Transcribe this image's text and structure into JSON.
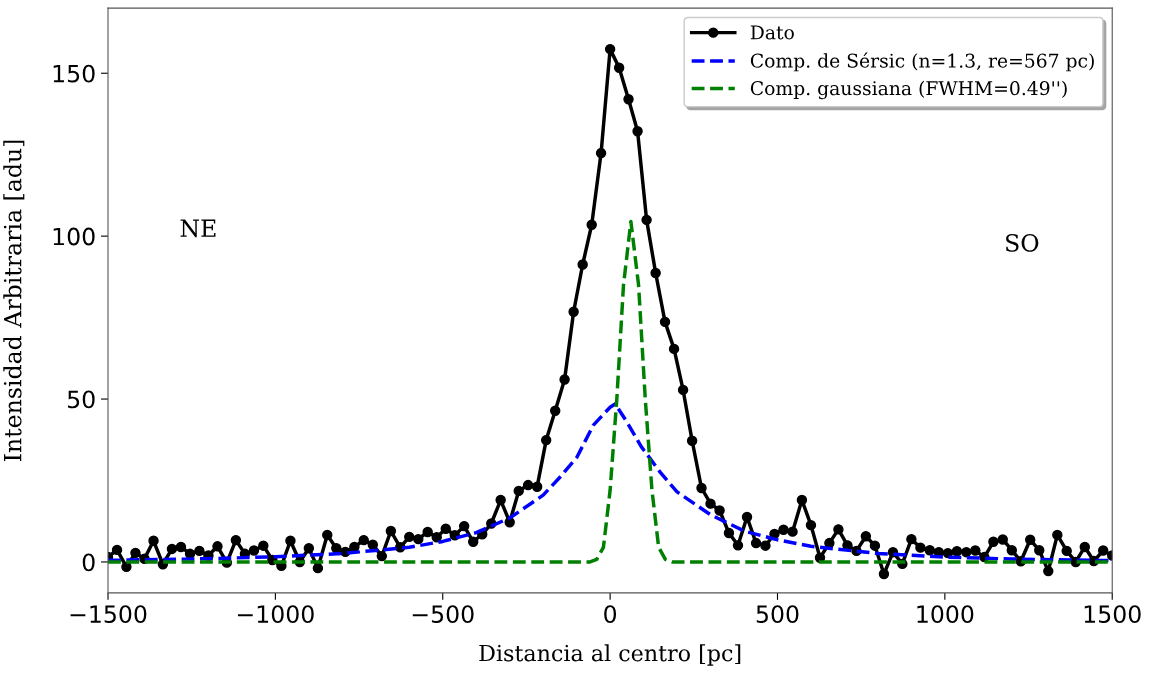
{
  "chart_data": {
    "type": "line",
    "xlabel": "Distancia al centro [pc]",
    "ylabel": "Intensidad Arbitraria [adu]",
    "annotations": [
      "NE",
      "SO"
    ],
    "xlim": [
      -1500,
      1500
    ],
    "ylim": [
      -9.5,
      170
    ],
    "xticks": [
      -1500,
      -1000,
      -500,
      0,
      500,
      1000,
      1500
    ],
    "yticks": [
      0,
      50,
      100,
      150
    ],
    "grid": false,
    "legend": "top right",
    "series": [
      {
        "name": "Dato",
        "color": "#000000",
        "marker": "circle",
        "line_style": "solid",
        "x": [
          -1500,
          -1473,
          -1445,
          -1418,
          -1391,
          -1364,
          -1336,
          -1309,
          -1282,
          -1255,
          -1227,
          -1200,
          -1173,
          -1145,
          -1118,
          -1091,
          -1064,
          -1036,
          -1009,
          -982,
          -955,
          -927,
          -900,
          -873,
          -845,
          -818,
          -791,
          -764,
          -736,
          -709,
          -682,
          -655,
          -627,
          -600,
          -573,
          -545,
          -518,
          -491,
          -464,
          -436,
          -409,
          -382,
          -355,
          -327,
          -300,
          -273,
          -245,
          -218,
          -191,
          -164,
          -136,
          -109,
          -82,
          -55,
          -27,
          0,
          27,
          55,
          82,
          109,
          136,
          164,
          191,
          218,
          245,
          273,
          300,
          327,
          355,
          382,
          409,
          436,
          464,
          491,
          518,
          545,
          573,
          600,
          627,
          655,
          682,
          709,
          736,
          764,
          791,
          818,
          845,
          873,
          900,
          927,
          955,
          982,
          1009,
          1036,
          1064,
          1091,
          1118,
          1145,
          1173,
          1200,
          1227,
          1255,
          1282,
          1309,
          1336,
          1364,
          1391,
          1418,
          1445,
          1473,
          1500
        ],
        "values": [
          1.5,
          3.7,
          -1.5,
          2.8,
          1,
          6.5,
          -0.7,
          4,
          4.6,
          2.5,
          3.4,
          2,
          4.8,
          -0.2,
          6.7,
          2.5,
          3.5,
          5,
          0.6,
          -1.2,
          6.5,
          0,
          4.2,
          -1.9,
          8.3,
          4.2,
          3.1,
          4.6,
          6.7,
          5.3,
          1.8,
          9.5,
          4.5,
          7.7,
          7,
          9.2,
          7.6,
          10.2,
          8.2,
          11,
          6.2,
          8.5,
          11.8,
          19,
          12.2,
          21.8,
          23.6,
          23.1,
          37.4,
          46.4,
          56,
          76.8,
          91.3,
          103.5,
          125.5,
          157.4,
          151.7,
          142,
          132.2,
          105,
          88.7,
          73.7,
          65.4,
          52.8,
          37.2,
          22.7,
          17.9,
          15.8,
          8.9,
          5.1,
          13.8,
          5.8,
          5,
          8.6,
          9.9,
          9.3,
          19,
          11.3,
          1.3,
          5.8,
          10,
          5.1,
          3.4,
          7.9,
          5,
          -3.7,
          3,
          -0.6,
          7,
          4.4,
          3.6,
          3,
          2.7,
          3.3,
          3,
          3.5,
          1.5,
          6.2,
          6.9,
          3.6,
          0.2,
          6.8,
          3.6,
          -2.8,
          8.3,
          3.4,
          0,
          4.6,
          0.3,
          3.5,
          2
        ]
      },
      {
        "name": "Comp. de Sérsic (n=1.3, re=567 pc)",
        "color": "#0000ff",
        "marker": "none",
        "line_style": "dashed",
        "x": [
          -1500,
          -1200,
          -1000,
          -800,
          -600,
          -500,
          -400,
          -300,
          -200,
          -150,
          -100,
          -75,
          -50,
          0,
          15,
          50,
          93,
          150,
          200,
          300,
          400,
          500,
          600,
          800,
          1000,
          1200,
          1500
        ],
        "values": [
          0.5,
          1.0,
          1.6,
          2.6,
          4.5,
          6.3,
          9,
          13.5,
          20.5,
          26,
          32,
          37,
          42,
          47.5,
          48.5,
          43,
          35.4,
          27.5,
          21.5,
          14.5,
          9.5,
          6.8,
          4.8,
          2.6,
          1.5,
          0.9,
          0.4
        ]
      },
      {
        "name": "Comp. gaussiana (FWHM=0.49'')",
        "color": "#008000",
        "marker": "none",
        "line_style": "dashed",
        "x": [
          -1500,
          -60,
          -40,
          -20,
          0,
          20,
          40,
          62,
          85,
          105,
          125,
          145,
          165,
          185,
          1500
        ],
        "values": [
          0,
          0,
          0.8,
          4.5,
          22,
          50,
          85,
          104.5,
          85,
          50,
          22,
          4.5,
          0.8,
          0,
          0
        ]
      }
    ]
  }
}
